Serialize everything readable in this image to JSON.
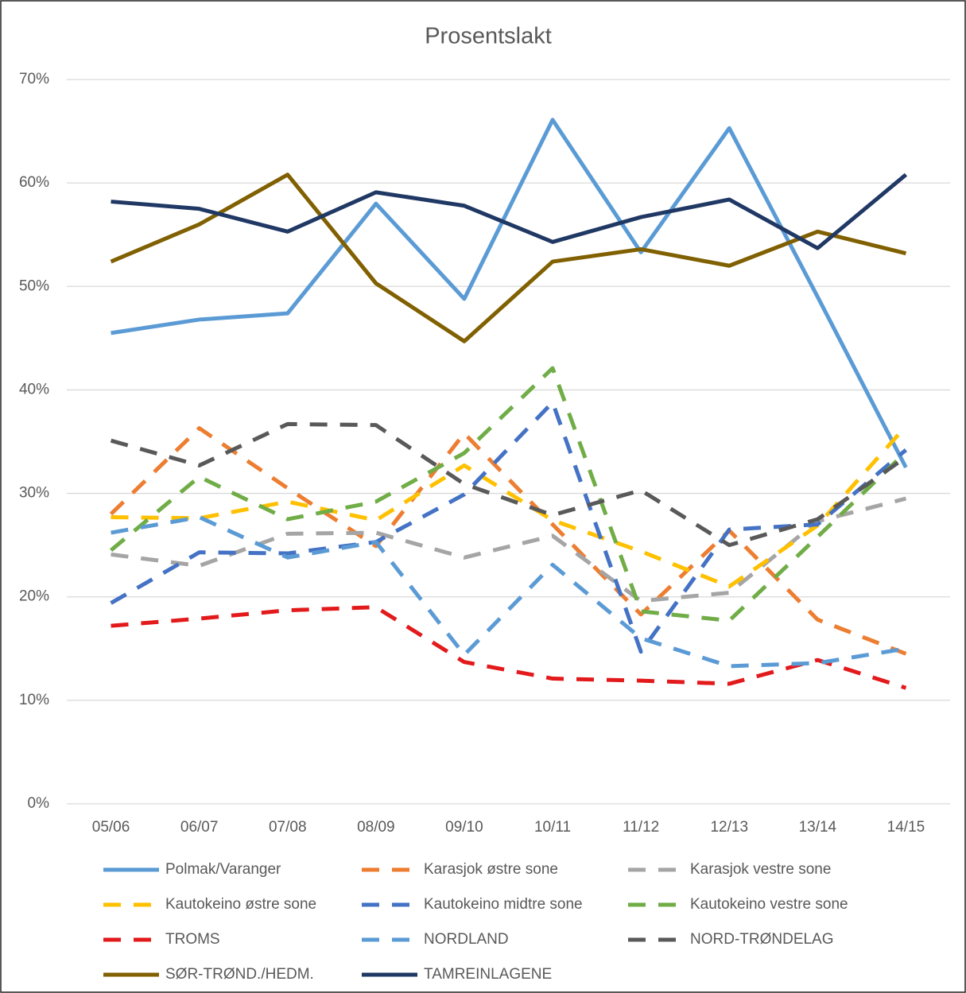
{
  "chart_data": {
    "type": "line",
    "title": "Prosentslakt",
    "categories": [
      "05/06",
      "06/07",
      "07/08",
      "08/09",
      "09/10",
      "10/11",
      "11/12",
      "12/13",
      "13/14",
      "14/15"
    ],
    "ylim": [
      0,
      70
    ],
    "yticks": [
      {
        "value": 0,
        "label": "0%"
      },
      {
        "value": 10,
        "label": "10%"
      },
      {
        "value": 20,
        "label": "20%"
      },
      {
        "value": 30,
        "label": "30%"
      },
      {
        "value": 40,
        "label": "40%"
      },
      {
        "value": 50,
        "label": "50%"
      },
      {
        "value": 60,
        "label": "60%"
      },
      {
        "value": 70,
        "label": "70%"
      }
    ],
    "grid": true,
    "series": [
      {
        "name": "Polmak/Varanger",
        "color": "#5b9bd5",
        "dashed": false,
        "values": [
          45.5,
          46.8,
          47.4,
          58.0,
          48.8,
          66.1,
          53.3,
          65.3,
          49.0,
          32.5
        ]
      },
      {
        "name": "Karasjok østre sone",
        "color": "#ed7d31",
        "dashed": true,
        "values": [
          28.0,
          36.3,
          30.5,
          24.9,
          35.8,
          27.0,
          18.3,
          26.4,
          17.8,
          14.5
        ]
      },
      {
        "name": "Karasjok vestre sone",
        "color": "#a5a5a5",
        "dashed": true,
        "values": [
          24.1,
          23.0,
          26.1,
          26.2,
          23.8,
          25.9,
          19.6,
          20.4,
          27.3,
          29.5
        ]
      },
      {
        "name": "Kautokeino østre sone",
        "color": "#ffc000",
        "dashed": true,
        "values": [
          27.7,
          27.6,
          29.2,
          27.4,
          32.7,
          27.4,
          24.4,
          21.0,
          26.9,
          36.5
        ]
      },
      {
        "name": "Kautokeino midtre sone",
        "color": "#4472c4",
        "dashed": true,
        "values": [
          19.4,
          24.3,
          24.2,
          25.3,
          29.9,
          38.8,
          14.7,
          26.5,
          27.0,
          34.2
        ]
      },
      {
        "name": "Kautokeino vestre sone",
        "color": "#70ad47",
        "dashed": true,
        "values": [
          24.5,
          31.6,
          27.5,
          29.2,
          33.9,
          42.1,
          18.6,
          17.7,
          25.8,
          34.0
        ]
      },
      {
        "name": "TROMS",
        "color": "#e31a1c",
        "dashed": true,
        "values": [
          17.2,
          17.9,
          18.7,
          19.0,
          13.7,
          12.1,
          11.9,
          11.6,
          13.9,
          11.2
        ]
      },
      {
        "name": "NORDLAND",
        "color": "#5b9bd5",
        "dashed": true,
        "values": [
          26.2,
          27.7,
          23.8,
          25.3,
          14.4,
          23.1,
          16.0,
          13.3,
          13.6,
          15.0
        ]
      },
      {
        "name": "NORD-TRØNDELAG",
        "color": "#595959",
        "dashed": true,
        "values": [
          35.1,
          32.7,
          36.7,
          36.6,
          30.9,
          27.9,
          30.3,
          25.0,
          27.5,
          33.5
        ]
      },
      {
        "name": "SØR-TRØND./HEDM.",
        "color": "#806000",
        "dashed": false,
        "values": [
          52.4,
          56.0,
          60.8,
          50.3,
          44.7,
          52.4,
          53.6,
          52.0,
          55.3,
          53.2
        ]
      },
      {
        "name": "TAMREINLAGENE",
        "color": "#203864",
        "dashed": false,
        "values": [
          58.2,
          57.5,
          55.3,
          59.1,
          57.8,
          54.3,
          56.7,
          58.4,
          53.7,
          60.8
        ]
      }
    ]
  }
}
